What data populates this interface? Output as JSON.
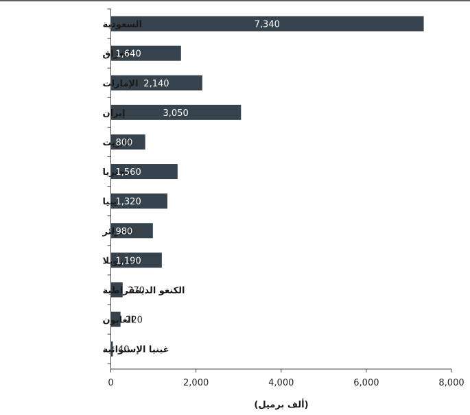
{
  "chart_data": {
    "type": "bar",
    "orientation": "horizontal",
    "categories": [
      "السعودية",
      "العراق",
      "الإمارات",
      "إيران",
      "الكويت",
      "نيجيريا",
      "ليبيا",
      "الجزائر",
      "فينزويلا",
      "الكنغو الديمقراطية",
      "الغابون",
      "غينيا الإستوائية"
    ],
    "values": [
      7340,
      1640,
      2140,
      3050,
      800,
      1560,
      1320,
      980,
      1190,
      270,
      220,
      40
    ],
    "value_labels": [
      "7,340",
      "1,640",
      "2,140",
      "3,050",
      "800",
      "1,560",
      "1,320",
      "980",
      "1,190",
      "270",
      "220",
      "40"
    ],
    "xlabel": "(ألف برميل)",
    "xlim": [
      0,
      8000
    ],
    "x_ticks": [
      0,
      2000,
      4000,
      6000,
      8000
    ],
    "x_tick_labels": [
      "0",
      "2,000",
      "4,000",
      "6,000",
      "8,000"
    ],
    "grid": false,
    "bar_color": "#36424c",
    "top_rule_color": "#2b2b2b"
  }
}
